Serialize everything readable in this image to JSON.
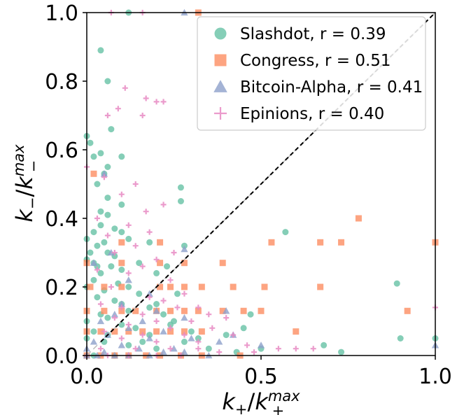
{
  "chart_data": {
    "type": "scatter",
    "xlabel": "k_+/k_+^max",
    "ylabel": "k_-/k_-^max",
    "xlim": [
      0,
      1
    ],
    "ylim": [
      0,
      1
    ],
    "x_ticks": [
      "0.0",
      "0.5",
      "1.0"
    ],
    "y_ticks": [
      "0.0",
      "0.2",
      "0.4",
      "0.6",
      "0.8",
      "1.0"
    ],
    "legend_position": "top-right",
    "diagonal_reference": true,
    "identity_line": true,
    "series": [
      {
        "name": "Slashdot",
        "r_label": "r = 0.39",
        "color": "#66c2a5",
        "marker": "circle",
        "points": [
          [
            0.12,
            1.0
          ],
          [
            0.04,
            0.89
          ],
          [
            0.06,
            0.8
          ],
          [
            0.07,
            0.66
          ],
          [
            0.0,
            0.64
          ],
          [
            0.01,
            0.62
          ],
          [
            0.02,
            0.58
          ],
          [
            0.04,
            0.59
          ],
          [
            0.1,
            0.58
          ],
          [
            0.06,
            0.55
          ],
          [
            0.05,
            0.53
          ],
          [
            0.03,
            0.5
          ],
          [
            0.27,
            0.49
          ],
          [
            0.27,
            0.45
          ],
          [
            0.06,
            0.46
          ],
          [
            0.1,
            0.44
          ],
          [
            0.04,
            0.42
          ],
          [
            0.06,
            0.41
          ],
          [
            0.04,
            0.38
          ],
          [
            0.08,
            0.37
          ],
          [
            0.1,
            0.36
          ],
          [
            0.02,
            0.36
          ],
          [
            0.0,
            0.34
          ],
          [
            0.05,
            0.33
          ],
          [
            0.03,
            0.32
          ],
          [
            0.01,
            0.3
          ],
          [
            0.06,
            0.3
          ],
          [
            0.0,
            0.28
          ],
          [
            0.02,
            0.27
          ],
          [
            0.07,
            0.26
          ],
          [
            0.04,
            0.24
          ],
          [
            0.1,
            0.25
          ],
          [
            0.02,
            0.22
          ],
          [
            0.09,
            0.21
          ],
          [
            0.12,
            0.2
          ],
          [
            0.0,
            0.2
          ],
          [
            0.05,
            0.19
          ],
          [
            0.15,
            0.18
          ],
          [
            0.03,
            0.17
          ],
          [
            0.08,
            0.16
          ],
          [
            0.18,
            0.14
          ],
          [
            0.2,
            0.15
          ],
          [
            0.12,
            0.13
          ],
          [
            0.04,
            0.12
          ],
          [
            0.06,
            0.11
          ],
          [
            0.22,
            0.12
          ],
          [
            0.25,
            0.1
          ],
          [
            0.0,
            0.1
          ],
          [
            0.1,
            0.09
          ],
          [
            0.14,
            0.08
          ],
          [
            0.3,
            0.07
          ],
          [
            0.02,
            0.07
          ],
          [
            0.06,
            0.06
          ],
          [
            0.18,
            0.06
          ],
          [
            0.28,
            0.04
          ],
          [
            0.05,
            0.04
          ],
          [
            0.12,
            0.03
          ],
          [
            0.2,
            0.02
          ],
          [
            0.35,
            0.02
          ],
          [
            0.5,
            0.02
          ],
          [
            0.43,
            0.01
          ],
          [
            0.57,
            0.36
          ],
          [
            0.89,
            0.21
          ],
          [
            0.47,
            0.12
          ],
          [
            0.26,
            0.18
          ],
          [
            0.28,
            0.32
          ],
          [
            0.45,
            0.08
          ],
          [
            0.73,
            0.01
          ],
          [
            0.9,
            0.05
          ],
          [
            1.0,
            0.05
          ],
          [
            0.68,
            0.03
          ],
          [
            0.24,
            0.09
          ],
          [
            0.16,
            0.04
          ],
          [
            0.32,
            0.05
          ],
          [
            0.4,
            0.06
          ],
          [
            0.2,
            0.24
          ],
          [
            0.23,
            0.26
          ],
          [
            0.18,
            0.33
          ],
          [
            0.12,
            0.34
          ],
          [
            0.08,
            0.29
          ],
          [
            0.15,
            0.27
          ],
          [
            0.1,
            0.15
          ],
          [
            0.03,
            0.26
          ],
          [
            0.0,
            0.05
          ],
          [
            0.0,
            0.0
          ],
          [
            0.02,
            0.0
          ],
          [
            0.08,
            0.0
          ]
        ]
      },
      {
        "name": "Congress",
        "r_label": "r = 0.51",
        "color": "#fc8d62",
        "marker": "square",
        "points": [
          [
            0.32,
            1.0
          ],
          [
            0.02,
            0.53
          ],
          [
            0.78,
            0.4
          ],
          [
            0.53,
            0.33
          ],
          [
            0.67,
            0.33
          ],
          [
            1.0,
            0.33
          ],
          [
            0.73,
            0.33
          ],
          [
            0.21,
            0.33
          ],
          [
            0.1,
            0.33
          ],
          [
            0.21,
            0.27
          ],
          [
            0.28,
            0.27
          ],
          [
            0.39,
            0.27
          ],
          [
            0.1,
            0.27
          ],
          [
            0.0,
            0.27
          ],
          [
            0.01,
            0.2
          ],
          [
            0.05,
            0.2
          ],
          [
            0.1,
            0.2
          ],
          [
            0.21,
            0.2
          ],
          [
            0.24,
            0.2
          ],
          [
            0.28,
            0.2
          ],
          [
            0.33,
            0.2
          ],
          [
            0.42,
            0.2
          ],
          [
            0.51,
            0.2
          ],
          [
            0.67,
            0.2
          ],
          [
            0.0,
            0.13
          ],
          [
            0.05,
            0.13
          ],
          [
            0.1,
            0.13
          ],
          [
            0.14,
            0.13
          ],
          [
            0.2,
            0.13
          ],
          [
            0.24,
            0.13
          ],
          [
            0.28,
            0.13
          ],
          [
            0.32,
            0.13
          ],
          [
            0.39,
            0.13
          ],
          [
            0.45,
            0.13
          ],
          [
            0.5,
            0.13
          ],
          [
            0.92,
            0.13
          ],
          [
            0.0,
            0.07
          ],
          [
            0.04,
            0.07
          ],
          [
            0.08,
            0.07
          ],
          [
            0.12,
            0.07
          ],
          [
            0.16,
            0.07
          ],
          [
            0.2,
            0.07
          ],
          [
            0.24,
            0.07
          ],
          [
            0.28,
            0.07
          ],
          [
            0.33,
            0.07
          ],
          [
            0.6,
            0.07
          ],
          [
            0.0,
            0.0
          ],
          [
            0.04,
            0.0
          ],
          [
            0.08,
            0.0
          ],
          [
            0.12,
            0.0
          ],
          [
            0.17,
            0.0
          ],
          [
            0.21,
            0.0
          ],
          [
            0.27,
            0.0
          ],
          [
            0.33,
            0.0
          ],
          [
            0.44,
            0.0
          ]
        ]
      },
      {
        "name": "Bitcoin-Alpha",
        "r_label": "r = 0.41",
        "color": "#8da0cb",
        "marker": "triangle",
        "points": [
          [
            0.28,
            1.0
          ],
          [
            0.05,
            0.53
          ],
          [
            0.28,
            0.31
          ],
          [
            0.07,
            0.3
          ],
          [
            0.02,
            0.27
          ],
          [
            0.12,
            0.22
          ],
          [
            0.18,
            0.18
          ],
          [
            0.1,
            0.15
          ],
          [
            0.2,
            0.13
          ],
          [
            0.08,
            0.12
          ],
          [
            0.16,
            0.1
          ],
          [
            0.28,
            0.11
          ],
          [
            0.4,
            0.13
          ],
          [
            0.04,
            0.1
          ],
          [
            0.12,
            0.08
          ],
          [
            0.22,
            0.07
          ],
          [
            0.06,
            0.06
          ],
          [
            0.18,
            0.05
          ],
          [
            0.3,
            0.05
          ],
          [
            0.38,
            0.04
          ],
          [
            0.5,
            0.03
          ],
          [
            0.42,
            0.06
          ],
          [
            0.02,
            0.04
          ],
          [
            0.1,
            0.03
          ],
          [
            0.15,
            0.02
          ],
          [
            0.25,
            0.02
          ],
          [
            0.0,
            0.02
          ],
          [
            0.05,
            0.01
          ],
          [
            0.08,
            0.0
          ],
          [
            0.12,
            0.0
          ],
          [
            0.18,
            0.0
          ],
          [
            0.22,
            0.01
          ],
          [
            0.35,
            0.0
          ],
          [
            1.0,
            0.03
          ],
          [
            0.0,
            0.0
          ],
          [
            0.03,
            0.0
          ],
          [
            0.28,
            0.01
          ]
        ]
      },
      {
        "name": "Epinions",
        "r_label": "r = 0.40",
        "color": "#e78ac3",
        "marker": "plus",
        "points": [
          [
            0.07,
            1.0
          ],
          [
            0.16,
            1.0
          ],
          [
            0.11,
            0.78
          ],
          [
            0.17,
            0.75
          ],
          [
            0.2,
            0.74
          ],
          [
            0.09,
            0.72
          ],
          [
            0.06,
            0.7
          ],
          [
            0.16,
            0.7
          ],
          [
            0.22,
            0.74
          ],
          [
            0.0,
            0.55
          ],
          [
            0.05,
            0.52
          ],
          [
            0.14,
            0.5
          ],
          [
            0.22,
            0.44
          ],
          [
            0.1,
            0.47
          ],
          [
            0.17,
            0.42
          ],
          [
            0.03,
            0.4
          ],
          [
            0.12,
            0.38
          ],
          [
            0.18,
            0.36
          ],
          [
            0.06,
            0.35
          ],
          [
            0.14,
            0.32
          ],
          [
            0.08,
            0.3
          ],
          [
            0.2,
            0.28
          ],
          [
            0.25,
            0.3
          ],
          [
            0.16,
            0.26
          ],
          [
            0.03,
            0.25
          ],
          [
            0.12,
            0.24
          ],
          [
            0.24,
            0.22
          ],
          [
            0.07,
            0.2
          ],
          [
            0.28,
            0.18
          ],
          [
            0.18,
            0.17
          ],
          [
            0.22,
            0.16
          ],
          [
            0.04,
            0.15
          ],
          [
            0.1,
            0.14
          ],
          [
            0.26,
            0.14
          ],
          [
            0.32,
            0.14
          ],
          [
            0.16,
            0.12
          ],
          [
            0.35,
            0.12
          ],
          [
            0.08,
            0.11
          ],
          [
            0.2,
            0.1
          ],
          [
            0.3,
            0.1
          ],
          [
            0.4,
            0.11
          ],
          [
            0.12,
            0.09
          ],
          [
            0.24,
            0.08
          ],
          [
            0.36,
            0.08
          ],
          [
            0.05,
            0.07
          ],
          [
            0.16,
            0.06
          ],
          [
            0.28,
            0.06
          ],
          [
            0.42,
            0.06
          ],
          [
            0.1,
            0.05
          ],
          [
            0.2,
            0.04
          ],
          [
            0.32,
            0.04
          ],
          [
            0.46,
            0.03
          ],
          [
            0.55,
            0.02
          ],
          [
            0.6,
            0.02
          ],
          [
            0.65,
            0.02
          ],
          [
            0.04,
            0.02
          ],
          [
            0.14,
            0.02
          ],
          [
            0.24,
            0.02
          ],
          [
            0.38,
            0.01
          ],
          [
            1.0,
            0.14
          ],
          [
            0.0,
            0.0
          ],
          [
            0.06,
            0.0
          ],
          [
            0.12,
            0.0
          ],
          [
            0.2,
            0.0
          ],
          [
            0.27,
            0.0
          ],
          [
            0.32,
            0.02
          ],
          [
            0.48,
            0.01
          ]
        ]
      }
    ]
  }
}
